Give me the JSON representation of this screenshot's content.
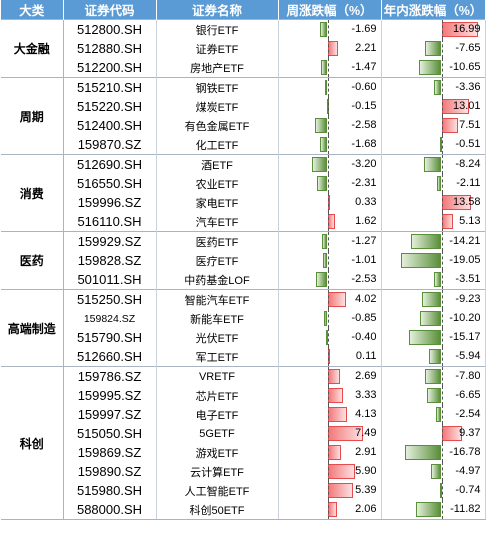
{
  "headers": [
    "大类",
    "证券代码",
    "证券名称",
    "周涨跌幅（%）",
    "年内涨跌幅（%）"
  ],
  "groups": [
    {
      "category": "大金融",
      "rows": [
        {
          "code": "512800.SH",
          "name": "银行ETF",
          "week": -1.69,
          "week_text": "-1.69",
          "ytd": 16.99,
          "ytd_text": "16.99"
        },
        {
          "code": "512880.SH",
          "name": "证券ETF",
          "week": 2.21,
          "week_text": "2.21",
          "ytd": -7.65,
          "ytd_text": "-7.65"
        },
        {
          "code": "512200.SH",
          "name": "房地产ETF",
          "week": -1.47,
          "week_text": "-1.47",
          "ytd": -10.65,
          "ytd_text": "-10.65"
        }
      ]
    },
    {
      "category": "周期",
      "rows": [
        {
          "code": "515210.SH",
          "name": "钢铁ETF",
          "week": -0.6,
          "week_text": "-0.60",
          "ytd": -3.36,
          "ytd_text": "-3.36"
        },
        {
          "code": "515220.SH",
          "name": "煤炭ETF",
          "week": -0.15,
          "week_text": "-0.15",
          "ytd": 13.01,
          "ytd_text": "13.01"
        },
        {
          "code": "512400.SH",
          "name": "有色金属ETF",
          "week": -2.58,
          "week_text": "-2.58",
          "ytd": 7.51,
          "ytd_text": "7.51"
        },
        {
          "code": "159870.SZ",
          "name": "化工ETF",
          "week": -1.68,
          "week_text": "-1.68",
          "ytd": -0.51,
          "ytd_text": "-0.51"
        }
      ]
    },
    {
      "category": "消费",
      "rows": [
        {
          "code": "512690.SH",
          "name": "酒ETF",
          "week": -3.2,
          "week_text": "-3.20",
          "ytd": -8.24,
          "ytd_text": "-8.24"
        },
        {
          "code": "516550.SH",
          "name": "农业ETF",
          "week": -2.31,
          "week_text": "-2.31",
          "ytd": -2.11,
          "ytd_text": "-2.11"
        },
        {
          "code": "159996.SZ",
          "name": "家电ETF",
          "week": 0.33,
          "week_text": "0.33",
          "ytd": 13.58,
          "ytd_text": "13.58"
        },
        {
          "code": "516110.SH",
          "name": "汽车ETF",
          "week": 1.62,
          "week_text": "1.62",
          "ytd": 5.13,
          "ytd_text": "5.13"
        }
      ]
    },
    {
      "category": "医药",
      "rows": [
        {
          "code": "159929.SZ",
          "name": "医药ETF",
          "week": -1.27,
          "week_text": "-1.27",
          "ytd": -14.21,
          "ytd_text": "-14.21"
        },
        {
          "code": "159828.SZ",
          "name": "医疗ETF",
          "week": -1.01,
          "week_text": "-1.01",
          "ytd": -19.05,
          "ytd_text": "-19.05"
        },
        {
          "code": "501011.SH",
          "name": "中药基金LOF",
          "week": -2.53,
          "week_text": "-2.53",
          "ytd": -3.51,
          "ytd_text": "-3.51"
        }
      ]
    },
    {
      "category": "高端制造",
      "small_code_row": 1,
      "rows": [
        {
          "code": "515250.SH",
          "name": "智能汽车ETF",
          "week": 4.02,
          "week_text": "4.02",
          "ytd": -9.23,
          "ytd_text": "-9.23"
        },
        {
          "code": "159824.SZ",
          "name": "新能车ETF",
          "week": -0.85,
          "week_text": "-0.85",
          "ytd": -10.2,
          "ytd_text": "-10.20"
        },
        {
          "code": "515790.SH",
          "name": "光伏ETF",
          "week": -0.4,
          "week_text": "-0.40",
          "ytd": -15.17,
          "ytd_text": "-15.17"
        },
        {
          "code": "512660.SH",
          "name": "军工ETF",
          "week": 0.11,
          "week_text": "0.11",
          "ytd": -5.94,
          "ytd_text": "-5.94"
        }
      ]
    },
    {
      "category": "科创",
      "rows": [
        {
          "code": "159786.SZ",
          "name": "VRETF",
          "week": 2.69,
          "week_text": "2.69",
          "ytd": -7.8,
          "ytd_text": "-7.80"
        },
        {
          "code": "159995.SZ",
          "name": "芯片ETF",
          "week": 3.33,
          "week_text": "3.33",
          "ytd": -6.65,
          "ytd_text": "-6.65"
        },
        {
          "code": "159997.SZ",
          "name": "电子ETF",
          "week": 4.13,
          "week_text": "4.13",
          "ytd": -2.54,
          "ytd_text": "-2.54"
        },
        {
          "code": "515050.SH",
          "name": "5GETF",
          "week": 7.49,
          "week_text": "7.49",
          "ytd": 9.37,
          "ytd_text": "9.37"
        },
        {
          "code": "159869.SZ",
          "name": "游戏ETF",
          "week": 2.91,
          "week_text": "2.91",
          "ytd": -16.78,
          "ytd_text": "-16.78"
        },
        {
          "code": "159890.SZ",
          "name": "云计算ETF",
          "week": 5.9,
          "week_text": "5.90",
          "ytd": -4.97,
          "ytd_text": "-4.97"
        },
        {
          "code": "515980.SH",
          "name": "人工智能ETF",
          "week": 5.39,
          "week_text": "5.39",
          "ytd": -0.74,
          "ytd_text": "-0.74"
        },
        {
          "code": "588000.SH",
          "name": "科创50ETF",
          "week": 2.06,
          "week_text": "2.06",
          "ytd": -11.82,
          "ytd_text": "-11.82"
        }
      ]
    }
  ],
  "colors": {
    "header_bg": "#5b9bd5",
    "positive_bar": "#f3797b",
    "negative_bar": "#5a8f3a"
  }
}
